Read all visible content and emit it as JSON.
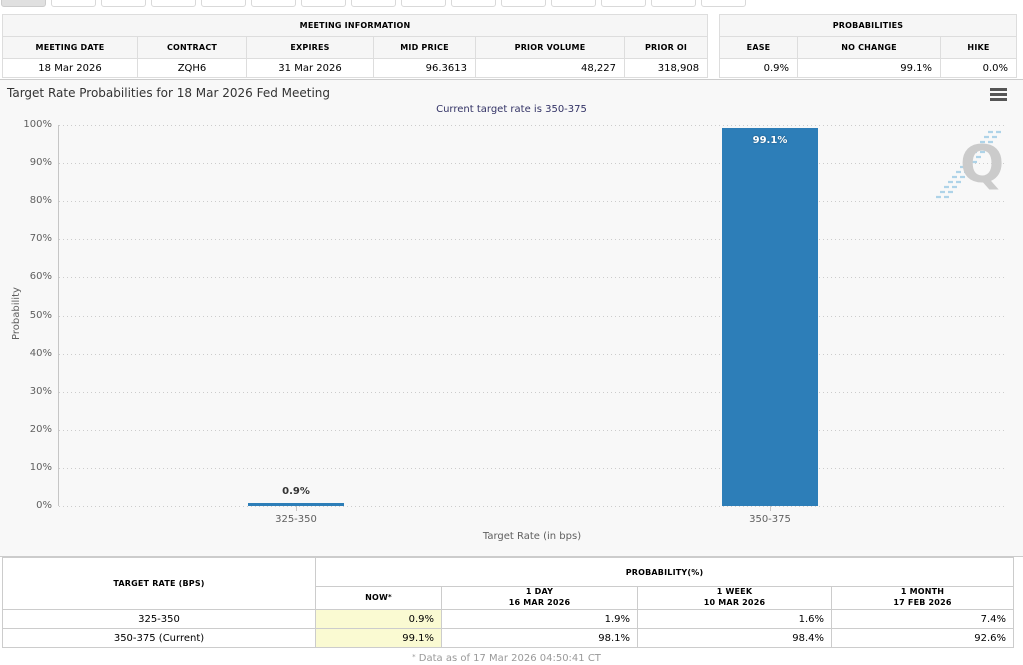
{
  "top_tabs": {
    "count": 15,
    "active_index": 0
  },
  "meeting_info": {
    "title": "MEETING INFORMATION",
    "columns": [
      "MEETING DATE",
      "CONTRACT",
      "EXPIRES",
      "MID PRICE",
      "PRIOR VOLUME",
      "PRIOR OI"
    ],
    "values": [
      "18 Mar 2026",
      "ZQH6",
      "31 Mar 2026",
      "96.3613",
      "48,227",
      "318,908"
    ]
  },
  "probabilities_summary": {
    "title": "PROBABILITIES",
    "columns": [
      "EASE",
      "NO CHANGE",
      "HIKE"
    ],
    "values": [
      "0.9%",
      "99.1%",
      "0.0%"
    ]
  },
  "chart_data": {
    "type": "bar",
    "title": "Target Rate Probabilities for 18 Mar 2026 Fed Meeting",
    "subtitle": "Current target rate is 350-375",
    "categories": [
      "325-350",
      "350-375"
    ],
    "values": [
      0.9,
      99.1
    ],
    "value_labels": [
      "0.9%",
      "99.1%"
    ],
    "xlabel": "Target Rate (in bps)",
    "ylabel": "Probability",
    "ylim": [
      0,
      100
    ],
    "ytick_step": 10,
    "grid": "horizontal-dotted",
    "legend": "none",
    "bar_color": "#2d7eb8"
  },
  "history_table": {
    "col1_header": "TARGET RATE (BPS)",
    "group_header": "PROBABILITY(%)",
    "sub_headers": [
      {
        "label": "NOW",
        "sup": "*",
        "date": ""
      },
      {
        "label": "1 DAY",
        "sup": "",
        "date": "16 MAR 2026"
      },
      {
        "label": "1 WEEK",
        "sup": "",
        "date": "10 MAR 2026"
      },
      {
        "label": "1 MONTH",
        "sup": "",
        "date": "17 FEB 2026"
      }
    ],
    "rows": [
      {
        "rate": "325-350",
        "values": [
          "0.9%",
          "1.9%",
          "1.6%",
          "7.4%"
        ]
      },
      {
        "rate": "350-375 (Current)",
        "values": [
          "99.1%",
          "98.1%",
          "98.4%",
          "92.6%"
        ]
      }
    ],
    "now_highlight_color": "#fafad2"
  },
  "footnote": {
    "sup": "*",
    "text": "Data as of 17 Mar 2026 04:50:41 CT"
  },
  "watermark": "Q"
}
